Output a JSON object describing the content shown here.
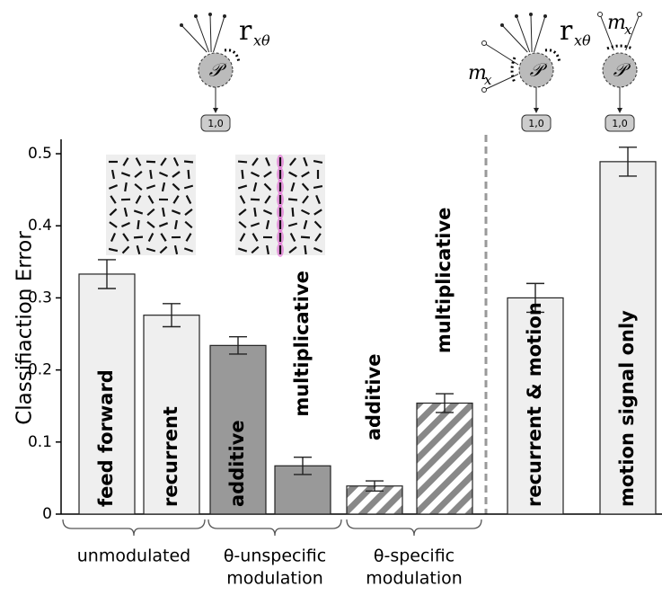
{
  "chart_data": {
    "type": "bar",
    "ylabel": "Classifiaction Error",
    "categories": [
      "feed forward",
      "recurrent",
      "additive",
      "multiplicative",
      "additive",
      "multiplicative",
      "recurrent  &  motion",
      "motion signal only"
    ],
    "values": [
      0.333,
      0.276,
      0.234,
      0.067,
      0.039,
      0.154,
      0.3,
      0.489
    ],
    "errors": [
      0.02,
      0.016,
      0.012,
      0.012,
      0.007,
      0.013,
      0.02,
      0.02
    ],
    "colors": [
      "#efefef",
      "#efefef",
      "#999999",
      "#999999",
      "#ffffff",
      "#ffffff",
      "#efefef",
      "#efefef"
    ],
    "hatched": [
      false,
      false,
      false,
      false,
      true,
      true,
      false,
      false
    ],
    "ylim": [
      0,
      0.52
    ],
    "yticks": [
      0,
      0.1,
      0.2,
      0.3,
      0.4,
      0.5
    ],
    "groups": [
      [
        "unmodulated"
      ],
      [
        "θ-unspecific",
        "modulation"
      ],
      [
        "θ-specific",
        "modulation"
      ]
    ],
    "diagram": {
      "neuron": "𝒫",
      "output": "1,0",
      "r": "r",
      "r_sub": "xθ",
      "m": "m",
      "m_sub": "x"
    }
  }
}
